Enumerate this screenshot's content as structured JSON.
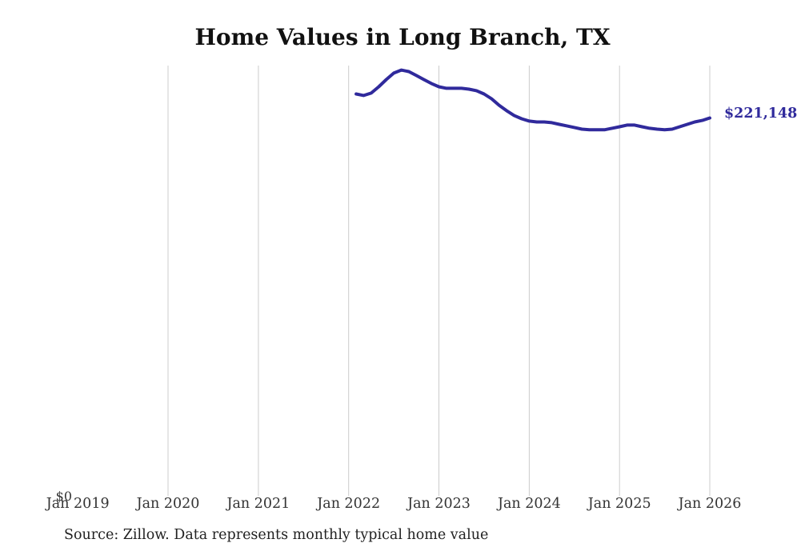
{
  "title": "Home Values in Long Branch, TX",
  "source_note": "Source: Zillow. Data represents monthly typical home value",
  "colors": {
    "line": "#302a9c",
    "end_label": "#302a9c",
    "gridline": "#cccccc",
    "title_text": "#111111",
    "axis_text": "#333333",
    "background": "#ffffff"
  },
  "chart_data": {
    "type": "line",
    "title": "Home Values in Long Branch, TX",
    "xlabel": "",
    "ylabel": "",
    "grid": "vertical-only",
    "x_ticks": [
      "Jan 2019",
      "Jan 2020",
      "Jan 2021",
      "Jan 2022",
      "Jan 2023",
      "Jan 2024",
      "Jan 2025",
      "Jan 2026"
    ],
    "gridline_years": [
      2020,
      2021,
      2022,
      2023,
      2024,
      2025,
      2026
    ],
    "y_zero_label": "$0",
    "end_label": "$221,148",
    "ylim": [
      0,
      248000
    ],
    "x_range": [
      "2019-01",
      "2026-01"
    ],
    "legend": "none",
    "series": [
      {
        "name": "Monthly typical home value",
        "months": [
          "2022-02",
          "2022-03",
          "2022-04",
          "2022-05",
          "2022-06",
          "2022-07",
          "2022-08",
          "2022-09",
          "2022-10",
          "2022-11",
          "2022-12",
          "2023-01",
          "2023-02",
          "2023-03",
          "2023-04",
          "2023-05",
          "2023-06",
          "2023-07",
          "2023-08",
          "2023-09",
          "2023-10",
          "2023-11",
          "2023-12",
          "2024-01",
          "2024-02",
          "2024-03",
          "2024-04",
          "2024-05",
          "2024-06",
          "2024-07",
          "2024-08",
          "2024-09",
          "2024-10",
          "2024-11",
          "2024-12",
          "2025-01",
          "2025-02",
          "2025-03",
          "2025-04",
          "2025-05",
          "2025-06",
          "2025-07",
          "2025-08",
          "2025-09",
          "2025-10",
          "2025-11",
          "2025-12",
          "2026-01"
        ],
        "values": [
          235200,
          234300,
          235700,
          239400,
          243600,
          247400,
          249200,
          248300,
          246000,
          243600,
          241300,
          239400,
          238500,
          238500,
          238500,
          238000,
          237100,
          235200,
          232400,
          228600,
          225400,
          222600,
          220700,
          219300,
          218800,
          218800,
          218400,
          217400,
          216500,
          215600,
          214600,
          214200,
          214200,
          214200,
          215100,
          216000,
          217000,
          217000,
          216000,
          215100,
          214600,
          214200,
          214600,
          216000,
          217400,
          218800,
          219700,
          221148
        ]
      }
    ]
  }
}
